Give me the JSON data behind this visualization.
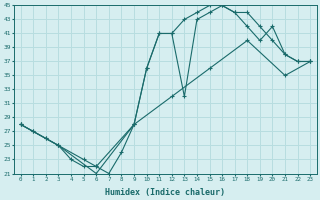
{
  "xlabel": "Humidex (Indice chaleur)",
  "bg_color": "#d6eef0",
  "grid_color": "#b8dde0",
  "line_color": "#1a6b6b",
  "xlim": [
    -0.5,
    23.5
  ],
  "ylim": [
    21,
    45
  ],
  "xticks": [
    0,
    1,
    2,
    3,
    4,
    5,
    6,
    7,
    8,
    9,
    10,
    11,
    12,
    13,
    14,
    15,
    16,
    17,
    18,
    19,
    20,
    21,
    22,
    23
  ],
  "yticks": [
    21,
    23,
    25,
    27,
    29,
    31,
    33,
    35,
    37,
    39,
    41,
    43,
    45
  ],
  "line1_x": [
    0,
    1,
    2,
    3,
    4,
    5,
    6,
    7,
    8,
    9,
    10,
    11,
    12,
    13,
    14,
    15,
    16,
    17,
    18,
    19,
    20,
    21,
    22,
    23
  ],
  "line1_y": [
    28,
    27,
    26,
    25,
    23,
    22,
    22,
    21,
    24,
    28,
    36,
    41,
    41,
    32,
    43,
    44,
    45,
    44,
    44,
    42,
    40,
    38,
    37,
    37
  ],
  "line2_x": [
    0,
    1,
    2,
    3,
    5,
    6,
    9,
    12,
    15,
    18,
    21,
    23
  ],
  "line2_y": [
    28,
    27,
    26,
    25,
    23,
    22,
    28,
    32,
    36,
    40,
    35,
    37
  ],
  "line3_x": [
    0,
    3,
    6,
    9,
    10,
    11,
    12,
    13,
    14,
    15,
    16,
    17,
    18,
    19,
    20,
    21,
    22,
    23
  ],
  "line3_y": [
    28,
    25,
    21,
    28,
    36,
    41,
    41,
    43,
    44,
    45,
    45,
    44,
    42,
    40,
    42,
    38,
    37,
    37
  ]
}
